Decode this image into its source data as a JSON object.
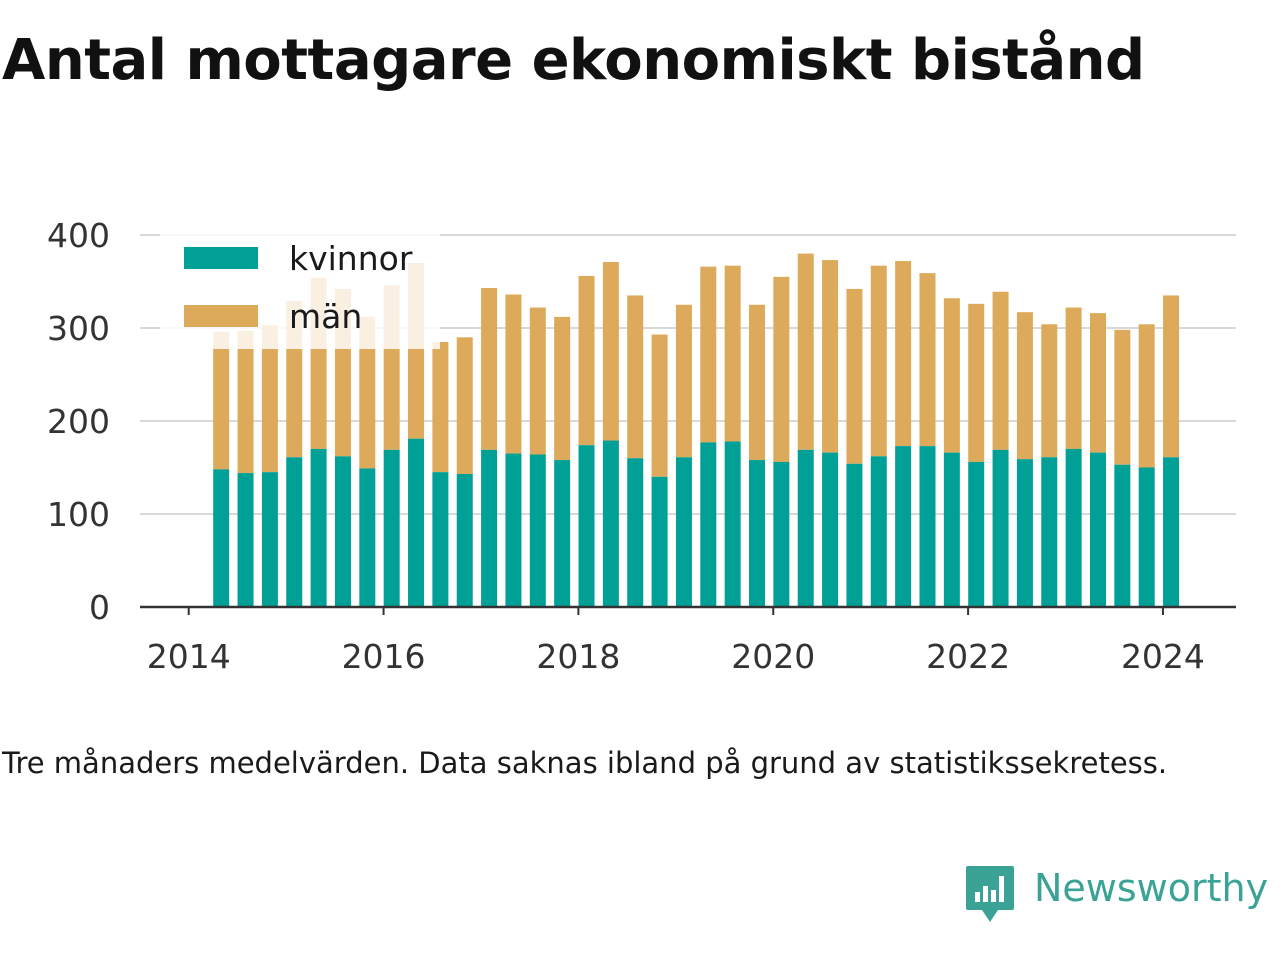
{
  "title": "Antal mottagare ekonomiskt bistånd",
  "note": "Tre månaders medelvärden. Data saknas ibland på grund av statistikssekretess.",
  "brand": {
    "name": "Newsworthy",
    "icon": "newsworthy-logo-icon",
    "color": "#3aa396"
  },
  "colors": {
    "kvinnor": "#00a096",
    "man": "#dcaa5a",
    "grid": "#d9d9d9",
    "axis": "#333333",
    "legend_bg": "#ffffff"
  },
  "chart_data": {
    "type": "bar",
    "stacked": true,
    "title": "Antal mottagare ekonomiskt bistånd",
    "xlabel": "",
    "ylabel": "",
    "ylim": [
      0,
      400
    ],
    "yticks": [
      "0",
      "100",
      "200",
      "300",
      "400"
    ],
    "xticks": [
      "2014",
      "2016",
      "2018",
      "2020",
      "2022",
      "2024"
    ],
    "xrange": [
      "2013.5",
      "2024.75"
    ],
    "grid": true,
    "legend_position": "top-left",
    "x": [
      "2014-05",
      "2014-08",
      "2014-11",
      "2015-02",
      "2015-05",
      "2015-08",
      "2015-11",
      "2016-02",
      "2016-05",
      "2016-08",
      "2016-11",
      "2017-02",
      "2017-05",
      "2017-08",
      "2017-11",
      "2018-02",
      "2018-05",
      "2018-08",
      "2018-11",
      "2019-02",
      "2019-05",
      "2019-08",
      "2019-11",
      "2020-02",
      "2020-05",
      "2020-08",
      "2020-11",
      "2021-02",
      "2021-05",
      "2021-08",
      "2021-11",
      "2022-02",
      "2022-05",
      "2022-08",
      "2022-11",
      "2023-02",
      "2023-05",
      "2023-08",
      "2023-11",
      "2024-02"
    ],
    "series": [
      {
        "name": "kvinnor",
        "values": [
          148,
          144,
          145,
          161,
          170,
          162,
          149,
          169,
          181,
          145,
          143,
          169,
          165,
          164,
          158,
          174,
          179,
          160,
          140,
          161,
          177,
          178,
          158,
          156,
          169,
          166,
          154,
          162,
          173,
          173,
          166,
          156,
          169,
          159,
          161,
          170,
          166,
          153,
          150,
          161
        ]
      },
      {
        "name": "män",
        "values": [
          148,
          153,
          158,
          168,
          184,
          180,
          163,
          177,
          189,
          140,
          147,
          174,
          171,
          158,
          154,
          182,
          192,
          175,
          153,
          164,
          189,
          189,
          167,
          199,
          211,
          207,
          188,
          205,
          199,
          186,
          166,
          170,
          170,
          158,
          143,
          152,
          150,
          145,
          154,
          174
        ]
      }
    ]
  }
}
